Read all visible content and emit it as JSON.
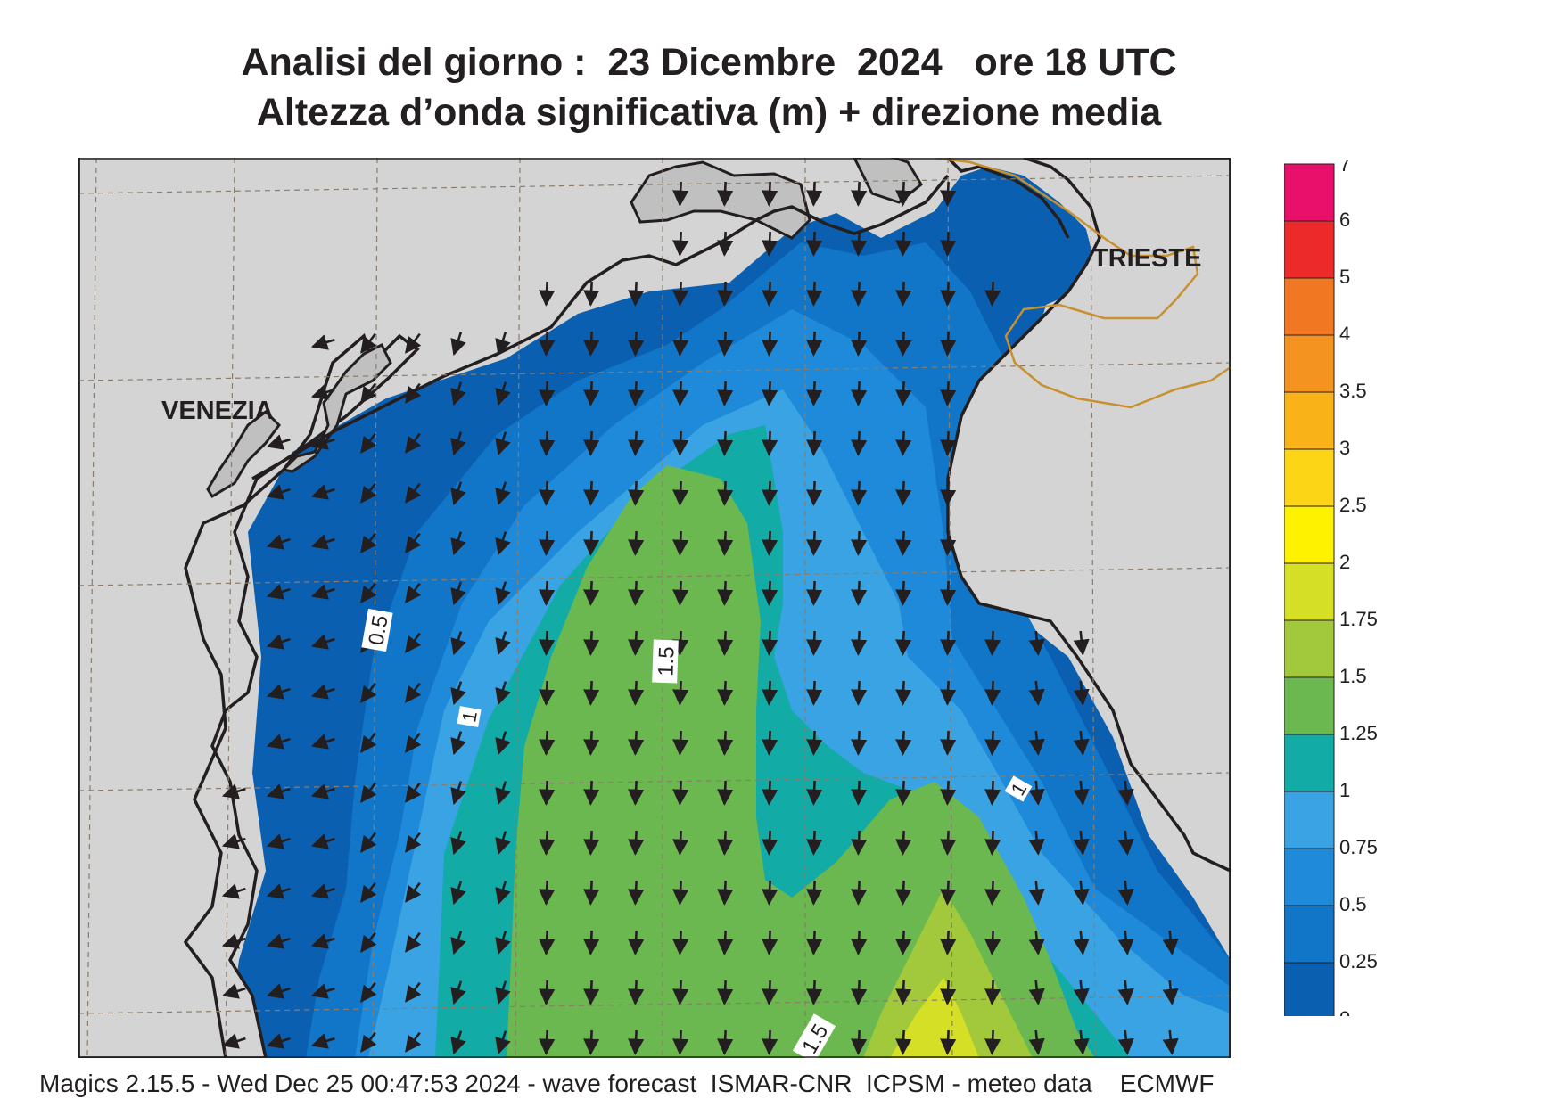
{
  "header": {
    "title_line1": "Analisi del giorno :  23 Dicembre  2024   ore 18 UTC",
    "title_line2": "Altezza d’onda significativa (m) + direzione media"
  },
  "map": {
    "cities": [
      "VENEZIA",
      "TRIESTE"
    ],
    "contour_labels": [
      "0.5",
      "1",
      "1.5",
      "1",
      "1.5"
    ],
    "land_color": "#d4d4d4",
    "coast_color": "#231f20",
    "border_color": "#c8902e",
    "arrow_direction": "south / south-west"
  },
  "colorbar": {
    "levels": [
      "0",
      "0.25",
      "0.5",
      "0.75",
      "1",
      "1.25",
      "1.5",
      "1.75",
      "2",
      "2.5",
      "3",
      "3.5",
      "4",
      "5",
      "6",
      "7"
    ],
    "colors": [
      "#0a5fb0",
      "#1175c8",
      "#1f8ad9",
      "#3aa3e3",
      "#13aba6",
      "#6ab84f",
      "#a2c83c",
      "#d4df26",
      "#fff200",
      "#fcd616",
      "#f9b318",
      "#f59320",
      "#f27722",
      "#ec2a2a",
      "#e9106c"
    ]
  },
  "footer": {
    "text": "Magics 2.15.5 - Wed Dec 25 00:47:53 2024 - wave forecast  ISMAR-CNR  ICPSM - meteo data    ECMWF"
  }
}
